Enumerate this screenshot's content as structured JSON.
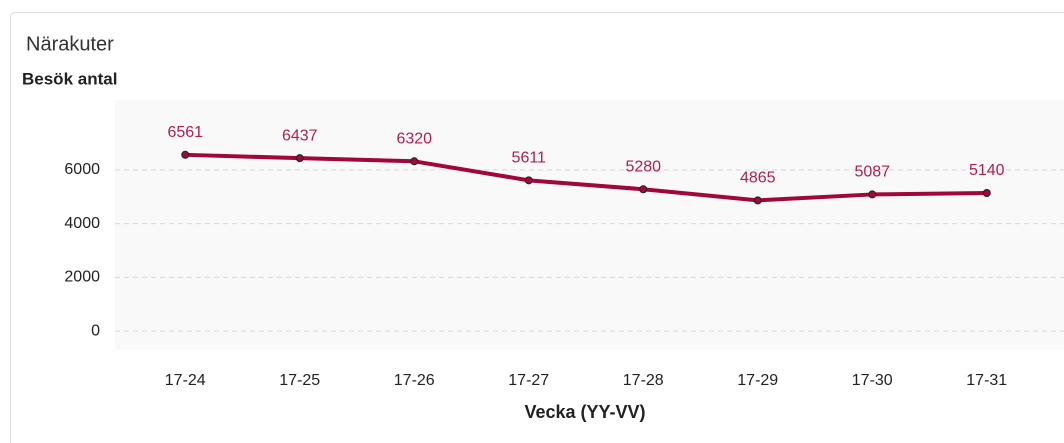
{
  "chart_data": {
    "type": "line",
    "title": "Närakuter",
    "subtitle": "Besök antal",
    "x_label": "Vecka (YY-VV)",
    "categories": [
      "17-24",
      "17-25",
      "17-26",
      "17-27",
      "17-28",
      "17-29",
      "17-30",
      "17-31"
    ],
    "series": [
      {
        "name": "Besök antal",
        "color": "#a0073a",
        "values": [
          6561,
          6437,
          6320,
          5611,
          5280,
          4865,
          5087,
          5140
        ]
      }
    ],
    "ylim": [
      -700,
      8600
    ],
    "yticks": [
      0,
      2000,
      4000,
      6000
    ],
    "grid": true
  }
}
